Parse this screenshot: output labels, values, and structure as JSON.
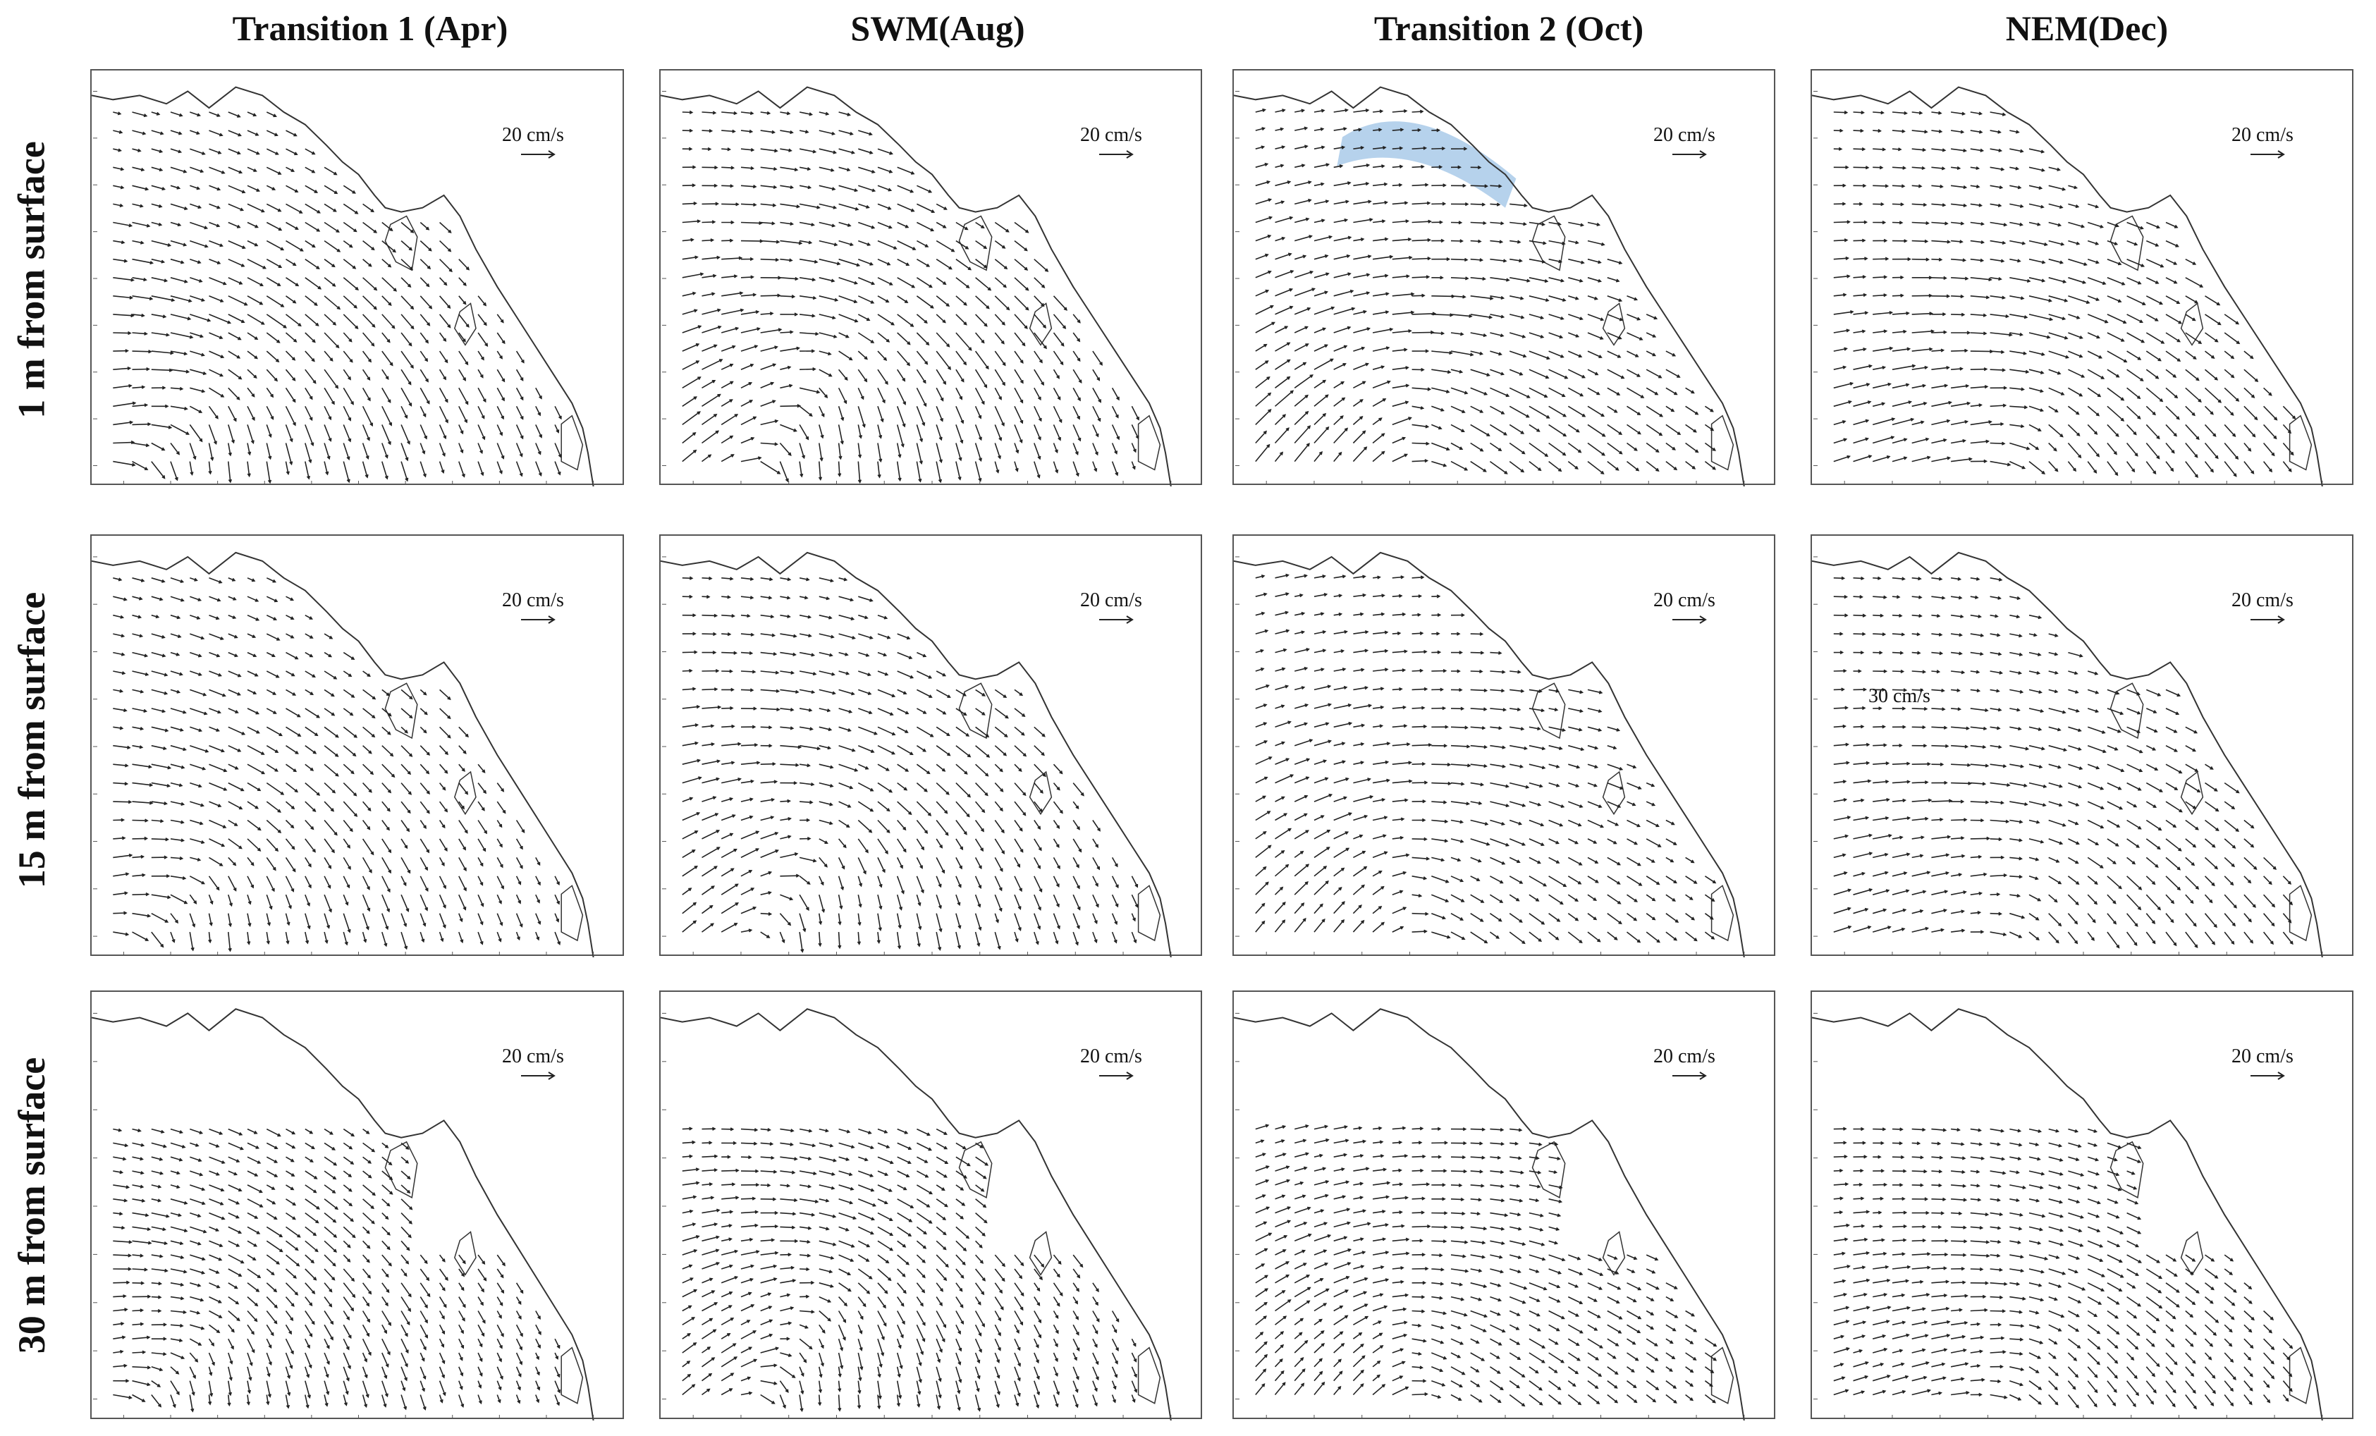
{
  "columns": [
    "Transition 1 (Apr)",
    "SWM(Aug)",
    "Transition 2 (Oct)",
    "NEM(Dec)"
  ],
  "rows": [
    "1 m from surface",
    "15 m from surface",
    "30 m from surface"
  ],
  "scale_label": "20 cm/s",
  "annotation": "30 cm/s",
  "colors": {
    "vector": "#222222",
    "coast": "#333333",
    "highlight": "#9ec3e6",
    "frame": "#555555"
  }
}
